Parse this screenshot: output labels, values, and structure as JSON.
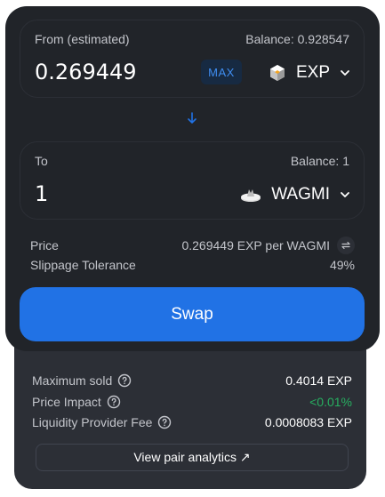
{
  "from": {
    "label": "From (estimated)",
    "balance": "Balance: 0.928547",
    "amount": "0.269449",
    "max_label": "MAX",
    "token": "EXP",
    "token_icon": "exp-cube-icon"
  },
  "to": {
    "label": "To",
    "balance": "Balance: 1",
    "amount": "1",
    "token": "WAGMI",
    "token_icon": "wagmi-logo-icon"
  },
  "price": {
    "label": "Price",
    "value": "0.269449 EXP per WAGMI"
  },
  "slippage": {
    "label": "Slippage Tolerance",
    "value": "49%"
  },
  "swap_label": "Swap",
  "details": {
    "max_sold_label": "Maximum sold",
    "max_sold_value": "0.4014 EXP",
    "price_impact_label": "Price Impact",
    "price_impact_value": "<0.01%",
    "lp_fee_label": "Liquidity Provider Fee",
    "lp_fee_value": "0.0008083 EXP",
    "analytics_label": "View pair analytics ↗"
  },
  "colors": {
    "accent": "#2172e5",
    "positive": "#27ae60",
    "card": "#212429"
  }
}
